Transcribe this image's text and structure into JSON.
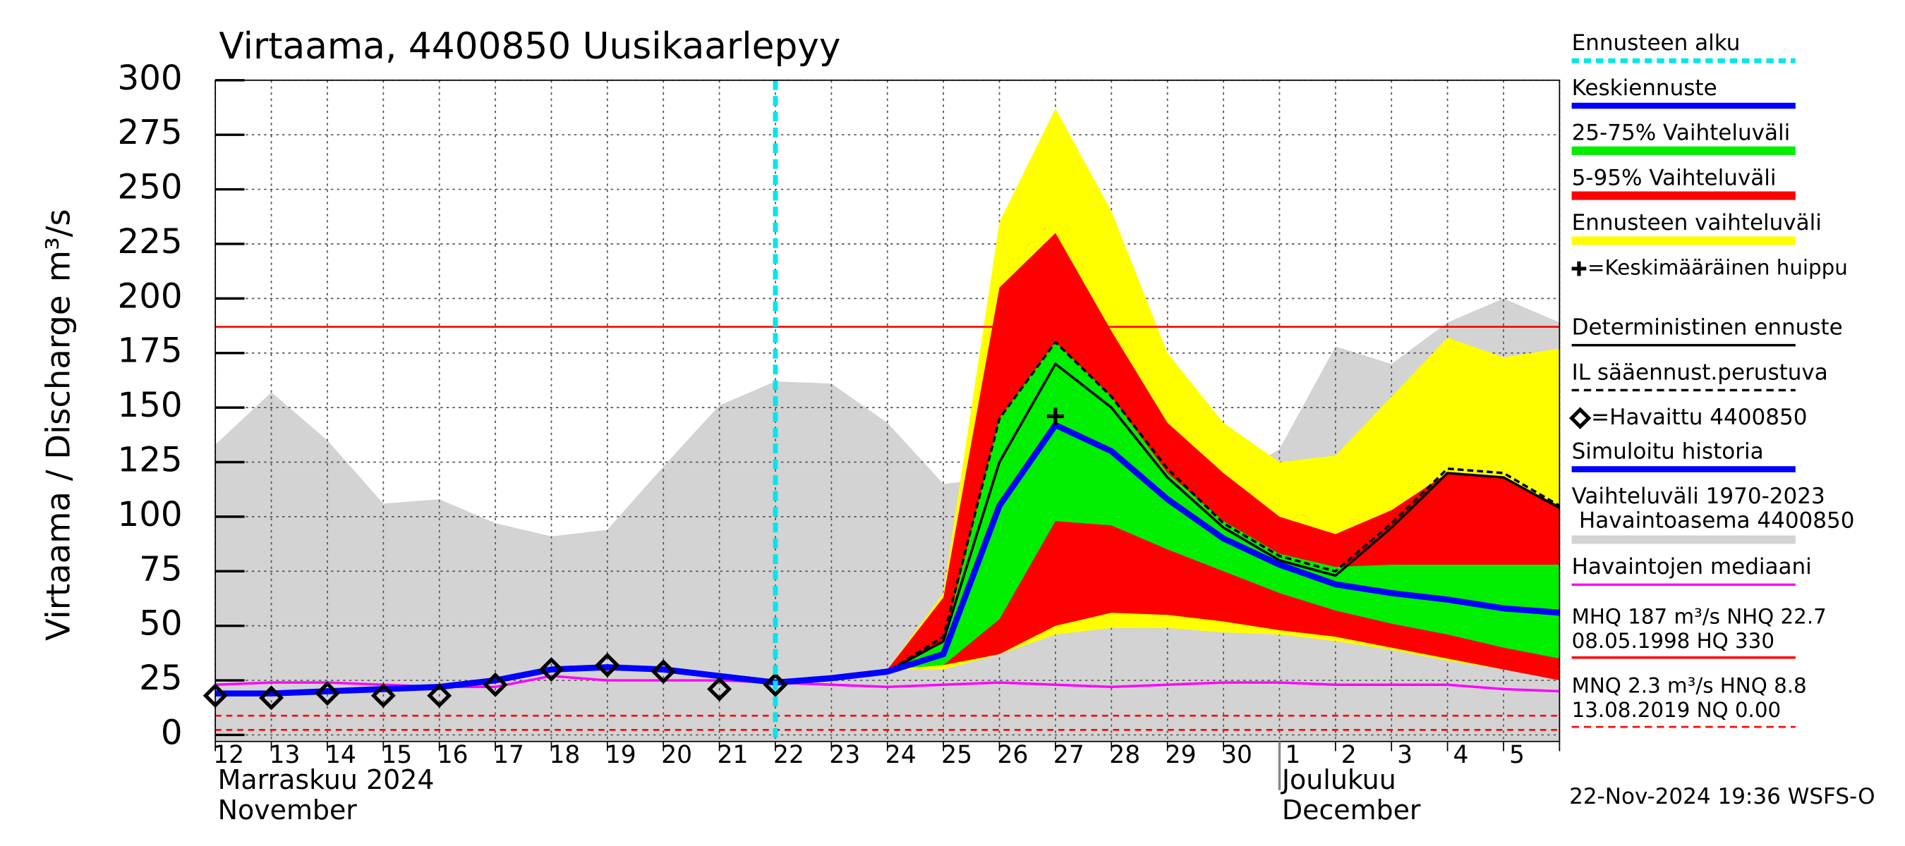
{
  "chart_data": {
    "type": "line",
    "title": "Virtaama, 4400850 Uusikaarlepyy",
    "ylabel": "Virtaama / Discharge",
    "yunit": "m³/s",
    "categories": [
      "12",
      "13",
      "14",
      "15",
      "16",
      "17",
      "18",
      "19",
      "20",
      "21",
      "22",
      "23",
      "24",
      "25",
      "26",
      "27",
      "28",
      "29",
      "30",
      "1",
      "2",
      "3",
      "4",
      "5",
      null
    ],
    "month_labels": [
      {
        "category": "12",
        "lines": [
          "Marraskuu 2024",
          "November"
        ]
      },
      {
        "category": "1",
        "lines": [
          "Joulukuu",
          "December"
        ]
      }
    ],
    "ylim": [
      -3,
      300
    ],
    "yticks": [
      0,
      25,
      50,
      75,
      100,
      125,
      150,
      175,
      200,
      225,
      250,
      275,
      300
    ],
    "grid": true,
    "forecast_start": {
      "category": "22",
      "label": "Ennusteen alku",
      "color": "#00e5ee"
    },
    "series": [
      {
        "name": "Keskiennuste",
        "kind": "line",
        "color": "#0000ff",
        "line_width": 5,
        "values": [
          null,
          null,
          null,
          null,
          null,
          null,
          null,
          null,
          null,
          null,
          24,
          26,
          29,
          37,
          105,
          142,
          130,
          108,
          90,
          78,
          69,
          65,
          62,
          58,
          56
        ]
      },
      {
        "name": "25-75% Vaihteluväli",
        "kind": "band",
        "color": "#00ee00",
        "upper": [
          null,
          null,
          null,
          null,
          null,
          null,
          null,
          null,
          null,
          null,
          null,
          null,
          30,
          42,
          145,
          180,
          155,
          120,
          98,
          83,
          77,
          78,
          78,
          78,
          78
        ],
        "lower": [
          null,
          null,
          null,
          null,
          null,
          null,
          null,
          null,
          null,
          null,
          null,
          null,
          30,
          32,
          53,
          98,
          96,
          85,
          75,
          65,
          57,
          51,
          46,
          40,
          35
        ]
      },
      {
        "name": "5-95% Vaihteluväli",
        "kind": "band",
        "color": "#ff0000",
        "upper": [
          null,
          null,
          null,
          null,
          null,
          null,
          null,
          null,
          null,
          null,
          null,
          null,
          30,
          63,
          205,
          230,
          185,
          143,
          120,
          100,
          92,
          103,
          120,
          118,
          105
        ],
        "lower": [
          null,
          null,
          null,
          null,
          null,
          null,
          null,
          null,
          null,
          null,
          null,
          null,
          30,
          32,
          37,
          50,
          56,
          55,
          52,
          48,
          45,
          40,
          35,
          30,
          25
        ]
      },
      {
        "name": "Ennusteen vaihteluväli",
        "kind": "band",
        "color": "#ffff00",
        "upper": [
          null,
          null,
          null,
          null,
          null,
          null,
          null,
          null,
          null,
          null,
          null,
          null,
          30,
          65,
          235,
          287,
          240,
          175,
          143,
          125,
          128,
          155,
          182,
          173,
          177
        ],
        "lower": [
          null,
          null,
          null,
          null,
          null,
          null,
          null,
          null,
          null,
          null,
          null,
          null,
          30,
          30,
          37,
          46,
          49,
          49,
          47,
          46,
          43,
          39,
          34,
          30,
          25
        ]
      },
      {
        "name": "=Keskimääräinen huippu",
        "kind": "peak",
        "color": "#000000",
        "values": [
          null,
          null,
          null,
          null,
          null,
          null,
          null,
          null,
          null,
          null,
          null,
          null,
          null,
          null,
          null,
          146,
          null,
          null,
          null,
          null,
          null,
          null,
          null,
          null,
          null
        ]
      },
      {
        "name": "Deterministinen ennuste",
        "kind": "line",
        "color": "#000000",
        "line_width": 2,
        "values": [
          null,
          null,
          null,
          null,
          null,
          null,
          null,
          null,
          null,
          null,
          24,
          26,
          29,
          43,
          125,
          170,
          150,
          118,
          95,
          80,
          73,
          95,
          120,
          118,
          104
        ]
      },
      {
        "name": "IL sääennust.perustuva",
        "kind": "line",
        "color": "#000000",
        "line_width": 2,
        "dashed": true,
        "values": [
          null,
          null,
          null,
          null,
          null,
          null,
          null,
          null,
          null,
          null,
          24,
          26,
          29,
          45,
          145,
          180,
          155,
          122,
          97,
          82,
          75,
          97,
          122,
          120,
          105
        ]
      },
      {
        "name": "=Havaittu 4400850",
        "kind": "markers",
        "color": "#000000",
        "values": [
          18,
          17,
          19,
          18,
          18,
          23,
          30,
          32,
          29,
          21,
          23,
          null,
          null,
          null,
          null,
          null,
          null,
          null,
          null,
          null,
          null,
          null,
          null,
          null,
          null
        ]
      },
      {
        "name": "Simuloitu historia",
        "kind": "line",
        "color": "#0000ff",
        "line_width": 5,
        "values": [
          19,
          19,
          20,
          21,
          22,
          25,
          30,
          31,
          30,
          27,
          24,
          null,
          null,
          null,
          null,
          null,
          null,
          null,
          null,
          null,
          null,
          null,
          null,
          null,
          null
        ]
      },
      {
        "name": "Vaihteluväli 1970-2023",
        "kind": "area",
        "color": "#d3d3d3",
        "values": [
          133,
          157,
          135,
          106,
          108,
          97,
          91,
          94,
          123,
          151,
          162,
          161,
          143,
          115,
          118,
          120,
          122,
          110,
          115,
          131,
          178,
          170,
          189,
          200,
          189
        ]
      },
      {
        "name": "Havaintojen mediaani",
        "kind": "line",
        "color": "#ff00ff",
        "line_width": 2,
        "values": [
          23,
          24,
          24,
          23,
          22,
          22,
          27,
          25,
          25,
          25,
          24,
          23,
          22,
          23,
          24,
          23,
          22,
          23,
          24,
          24,
          23,
          23,
          23,
          21,
          20
        ]
      }
    ],
    "station_label": "Havaintoasema 4400850",
    "reference_lines": [
      {
        "value": 187,
        "color": "#ff0000"
      },
      {
        "value": 8.8,
        "color": "#ff0000",
        "dashed": true
      },
      {
        "value": 2.3,
        "color": "#ff0000",
        "dashed": true
      }
    ],
    "stats": [
      {
        "lines": [
          "MHQ  187 m³/s NHQ 22.7",
          "08.05.1998 HQ  330"
        ],
        "color": "#ff0000"
      },
      {
        "lines": [
          "MNQ  2.3 m³/s HNQ  8.8",
          "13.08.2019 NQ 0.00"
        ],
        "color": "#ff0000",
        "dashed": true
      }
    ],
    "timestamp": "22-Nov-2024 19:36 WSFS-O"
  }
}
